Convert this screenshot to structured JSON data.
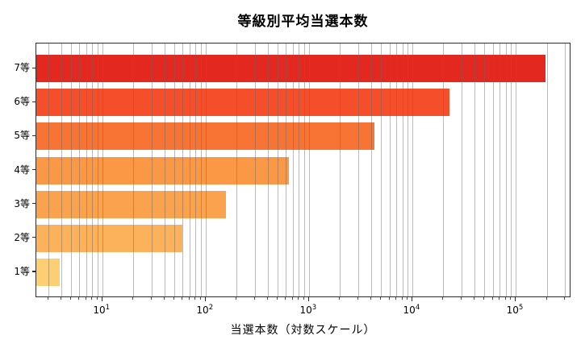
{
  "chart_data": {
    "type": "bar",
    "orientation": "horizontal",
    "xscale": "log",
    "title": "等級別平均当選本数",
    "xlabel": "当選本数（対数スケール）",
    "ylabel": "",
    "categories": [
      "7等",
      "6等",
      "5等",
      "4等",
      "3等",
      "2等",
      "1等"
    ],
    "values": [
      195000,
      23000,
      4300,
      640,
      158,
      60,
      3.9
    ],
    "bar_colors": [
      "#e32820",
      "#f44e2a",
      "#f87434",
      "#fa9845",
      "#fba24e",
      "#fcb25a",
      "#fdce72"
    ],
    "xlim": [
      2.3,
      346000
    ],
    "xticks": [
      {
        "value": 10,
        "base": "10",
        "exp": "1"
      },
      {
        "value": 100,
        "base": "10",
        "exp": "2"
      },
      {
        "value": 1000,
        "base": "10",
        "exp": "3"
      },
      {
        "value": 10000,
        "base": "10",
        "exp": "4"
      },
      {
        "value": 100000,
        "base": "10",
        "exp": "5"
      }
    ],
    "grid": "both",
    "legend": null,
    "background_color": "#ffffff",
    "gridline_color": "#b0b0b0",
    "spine_color": "#2b2b2b"
  }
}
